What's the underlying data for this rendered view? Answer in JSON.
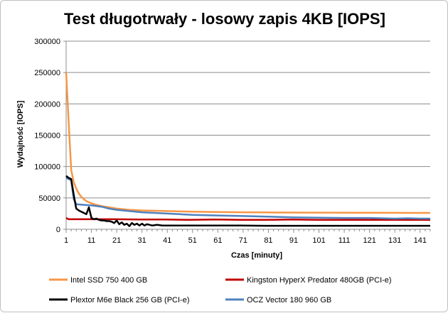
{
  "chart_data": {
    "type": "line",
    "title": "Test długotrwały - losowy zapis 4KB [IOPS]",
    "xlabel": "Czas [minuty]",
    "ylabel": "Wydajność [IOPS]",
    "ylim": [
      0,
      300000
    ],
    "xlim": [
      1,
      145
    ],
    "yticks": [
      "0",
      "50000",
      "100000",
      "150000",
      "200000",
      "250000",
      "300000"
    ],
    "xticks": [
      "1",
      "11",
      "21",
      "31",
      "41",
      "51",
      "61",
      "71",
      "81",
      "91",
      "101",
      "111",
      "121",
      "131",
      "141"
    ],
    "grid": "horizontal",
    "legend_position": "bottom",
    "series": [
      {
        "name": "Intel SSD 750 400 GB",
        "color": "#f79646",
        "points": [
          [
            1,
            250000
          ],
          [
            2,
            170000
          ],
          [
            3,
            95000
          ],
          [
            4,
            75000
          ],
          [
            5,
            65000
          ],
          [
            6,
            57000
          ],
          [
            7,
            52000
          ],
          [
            8,
            48000
          ],
          [
            9,
            45000
          ],
          [
            10,
            43000
          ],
          [
            12,
            40000
          ],
          [
            15,
            37000
          ],
          [
            18,
            35000
          ],
          [
            21,
            33000
          ],
          [
            26,
            31000
          ],
          [
            31,
            30000
          ],
          [
            41,
            29000
          ],
          [
            51,
            28000
          ],
          [
            61,
            27500
          ],
          [
            71,
            27000
          ],
          [
            81,
            26800
          ],
          [
            101,
            26500
          ],
          [
            121,
            26300
          ],
          [
            145,
            26000
          ]
        ]
      },
      {
        "name": "Kingston HyperX Predator 480GB (PCI-e)",
        "color": "#c00000",
        "points": [
          [
            1,
            18000
          ],
          [
            2,
            16000
          ],
          [
            5,
            16000
          ],
          [
            10,
            16000
          ],
          [
            20,
            16000
          ],
          [
            30,
            15500
          ],
          [
            40,
            15500
          ],
          [
            50,
            15000
          ],
          [
            60,
            15500
          ],
          [
            70,
            15000
          ],
          [
            80,
            15000
          ],
          [
            90,
            15500
          ],
          [
            100,
            15000
          ],
          [
            110,
            15000
          ],
          [
            120,
            15000
          ],
          [
            130,
            15000
          ],
          [
            140,
            15000
          ],
          [
            145,
            15000
          ]
        ]
      },
      {
        "name": "Plextor M6e Black 256 GB (PCI-e)",
        "color": "#000000",
        "points": [
          [
            1,
            85000
          ],
          [
            2,
            82000
          ],
          [
            3,
            80000
          ],
          [
            4,
            55000
          ],
          [
            5,
            33000
          ],
          [
            6,
            30000
          ],
          [
            7,
            28000
          ],
          [
            8,
            26000
          ],
          [
            9,
            24000
          ],
          [
            10,
            35000
          ],
          [
            11,
            18000
          ],
          [
            12,
            16000
          ],
          [
            13,
            17000
          ],
          [
            14,
            15000
          ],
          [
            15,
            14000
          ],
          [
            16,
            14000
          ],
          [
            17,
            13000
          ],
          [
            18,
            13000
          ],
          [
            19,
            12000
          ],
          [
            20,
            10000
          ],
          [
            21,
            14000
          ],
          [
            22,
            8000
          ],
          [
            23,
            11000
          ],
          [
            24,
            7000
          ],
          [
            25,
            9000
          ],
          [
            26,
            5000
          ],
          [
            27,
            10000
          ],
          [
            28,
            7000
          ],
          [
            29,
            9000
          ],
          [
            30,
            6000
          ],
          [
            31,
            9000
          ],
          [
            32,
            6000
          ],
          [
            33,
            8000
          ],
          [
            35,
            6000
          ],
          [
            37,
            7000
          ],
          [
            39,
            6000
          ],
          [
            41,
            6000
          ],
          [
            45,
            6000
          ],
          [
            50,
            6000
          ],
          [
            60,
            6000
          ],
          [
            70,
            6000
          ],
          [
            80,
            5500
          ],
          [
            90,
            5500
          ],
          [
            100,
            5500
          ],
          [
            110,
            5500
          ],
          [
            120,
            5500
          ],
          [
            130,
            5500
          ],
          [
            145,
            5500
          ]
        ]
      },
      {
        "name": "OCZ Vector 180 960 GB",
        "color": "#4f81bd",
        "points": [
          [
            1,
            82000
          ],
          [
            2,
            80000
          ],
          [
            3,
            78000
          ],
          [
            4,
            48000
          ],
          [
            5,
            40000
          ],
          [
            8,
            39000
          ],
          [
            11,
            38000
          ],
          [
            15,
            36000
          ],
          [
            18,
            33000
          ],
          [
            21,
            31000
          ],
          [
            26,
            29000
          ],
          [
            31,
            27000
          ],
          [
            36,
            26000
          ],
          [
            41,
            25000
          ],
          [
            46,
            24000
          ],
          [
            51,
            23000
          ],
          [
            61,
            22000
          ],
          [
            71,
            21000
          ],
          [
            81,
            20000
          ],
          [
            91,
            19000
          ],
          [
            101,
            18500
          ],
          [
            111,
            18000
          ],
          [
            121,
            18000
          ],
          [
            131,
            17000
          ],
          [
            136,
            17500
          ],
          [
            141,
            17000
          ],
          [
            145,
            17000
          ]
        ]
      }
    ]
  }
}
